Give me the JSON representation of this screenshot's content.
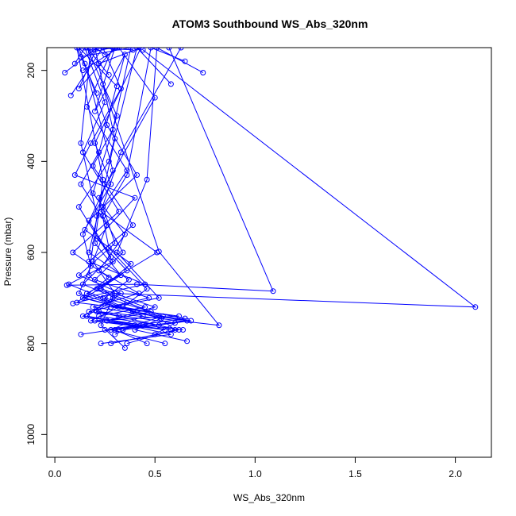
{
  "chart_data": {
    "type": "line",
    "title": "ATOM3 Southbound WS_Abs_320nm",
    "xlabel": "WS_Abs_320nm",
    "ylabel": "Pressure (mbar)",
    "xlim": [
      -0.04,
      2.18
    ],
    "ylim": [
      1050,
      150
    ],
    "y_reversed": true,
    "xticks": [
      0.0,
      0.5,
      1.0,
      1.5,
      2.0
    ],
    "xtick_labels": [
      "0.0",
      "0.5",
      "1.0",
      "1.5",
      "2.0"
    ],
    "yticks": [
      200,
      400,
      600,
      800,
      1000
    ],
    "ytick_labels": [
      "200",
      "400",
      "600",
      "800",
      "1000"
    ],
    "grid": false,
    "legend": "none",
    "color": "#0000ff",
    "marker": "open-circle",
    "series": [
      {
        "points": [
          [
            0.05,
            205
          ],
          [
            0.21,
            150
          ],
          [
            0.12,
            240
          ],
          [
            0.3,
            150
          ],
          [
            0.2,
            290
          ],
          [
            0.35,
            165
          ],
          [
            0.22,
            380
          ],
          [
            0.13,
            450
          ],
          [
            0.26,
            540
          ],
          [
            0.19,
            620
          ],
          [
            0.3,
            690
          ],
          [
            0.23,
            760
          ],
          [
            0.35,
            810
          ]
        ]
      },
      {
        "points": [
          [
            0.08,
            255
          ],
          [
            0.24,
            150
          ],
          [
            0.33,
            240
          ],
          [
            0.18,
            360
          ],
          [
            0.1,
            430
          ],
          [
            0.4,
            480
          ],
          [
            0.21,
            570
          ],
          [
            0.36,
            640
          ],
          [
            0.16,
            690
          ],
          [
            0.44,
            740
          ],
          [
            0.28,
            770
          ],
          [
            0.55,
            800
          ]
        ]
      },
      {
        "points": [
          [
            0.1,
            185
          ],
          [
            0.15,
            150
          ],
          [
            0.25,
            270
          ],
          [
            0.14,
            380
          ],
          [
            0.32,
            510
          ],
          [
            0.09,
            600
          ],
          [
            0.27,
            655
          ],
          [
            0.11,
            710
          ],
          [
            0.48,
            730
          ],
          [
            0.6,
            770
          ],
          [
            0.36,
            800
          ]
        ]
      },
      {
        "points": [
          [
            0.13,
            170
          ],
          [
            0.38,
            150
          ],
          [
            0.29,
            330
          ],
          [
            0.19,
            410
          ],
          [
            0.39,
            540
          ],
          [
            0.17,
            620
          ],
          [
            0.45,
            670
          ],
          [
            0.14,
            700
          ],
          [
            0.53,
            745
          ],
          [
            0.4,
            770
          ],
          [
            0.66,
            795
          ]
        ]
      },
      {
        "points": [
          [
            0.18,
            160
          ],
          [
            0.29,
            150
          ],
          [
            0.16,
            280
          ],
          [
            0.36,
            420
          ],
          [
            0.24,
            500
          ],
          [
            0.3,
            580
          ],
          [
            0.12,
            650
          ],
          [
            0.33,
            690
          ],
          [
            0.21,
            730
          ],
          [
            0.62,
            770
          ],
          [
            0.28,
            800
          ]
        ]
      },
      {
        "points": [
          [
            0.22,
            185
          ],
          [
            0.43,
            150
          ],
          [
            0.2,
            360
          ],
          [
            0.28,
            450
          ],
          [
            0.15,
            550
          ],
          [
            0.38,
            625
          ],
          [
            0.23,
            680
          ],
          [
            0.5,
            720
          ],
          [
            0.26,
            750
          ],
          [
            0.58,
            780
          ],
          [
            0.23,
            800
          ]
        ]
      },
      {
        "points": [
          [
            0.27,
            210
          ],
          [
            0.16,
            150
          ],
          [
            0.31,
            300
          ],
          [
            0.19,
            470
          ],
          [
            0.35,
            560
          ],
          [
            0.22,
            640
          ],
          [
            0.42,
            690
          ],
          [
            0.19,
            720
          ],
          [
            0.66,
            750
          ],
          [
            0.3,
            770
          ],
          [
            0.46,
            800
          ]
        ]
      },
      {
        "points": [
          [
            0.31,
            235
          ],
          [
            0.12,
            150
          ],
          [
            0.26,
            320
          ],
          [
            0.41,
            430
          ],
          [
            0.17,
            530
          ],
          [
            0.28,
            610
          ],
          [
            0.14,
            670
          ],
          [
            0.36,
            710
          ],
          [
            0.54,
            740
          ],
          [
            0.32,
            770
          ]
        ]
      },
      {
        "points": [
          [
            0.58,
            230
          ],
          [
            0.41,
            150
          ],
          [
            0.27,
            400
          ],
          [
            0.12,
            500
          ],
          [
            0.29,
            620
          ],
          [
            0.07,
            670
          ],
          [
            0.24,
            700
          ],
          [
            0.39,
            730
          ],
          [
            0.68,
            750
          ],
          [
            0.34,
            770
          ]
        ]
      },
      {
        "points": [
          [
            0.65,
            180
          ],
          [
            0.48,
            150
          ],
          [
            0.36,
            430
          ],
          [
            0.24,
            520
          ],
          [
            0.34,
            600
          ],
          [
            0.2,
            660
          ],
          [
            0.47,
            700
          ],
          [
            0.17,
            730
          ],
          [
            0.6,
            755
          ],
          [
            0.5,
            780
          ]
        ]
      },
      {
        "points": [
          [
            0.74,
            205
          ],
          [
            0.51,
            150
          ],
          [
            0.46,
            440
          ],
          [
            0.31,
            600
          ],
          [
            0.52,
            700
          ],
          [
            0.28,
            720
          ],
          [
            0.62,
            740
          ],
          [
            0.2,
            750
          ],
          [
            0.58,
            770
          ]
        ]
      },
      {
        "points": [
          [
            0.39,
            155
          ],
          [
            0.18,
            150
          ],
          [
            0.13,
            360
          ],
          [
            0.21,
            520
          ],
          [
            0.17,
            650
          ],
          [
            0.29,
            700
          ],
          [
            0.16,
            740
          ],
          [
            0.44,
            760
          ],
          [
            0.13,
            780
          ]
        ]
      },
      {
        "points": [
          [
            0.14,
            200
          ],
          [
            0.32,
            150
          ],
          [
            0.5,
            260
          ],
          [
            0.22,
            480
          ],
          [
            0.27,
            590
          ],
          [
            0.46,
            680
          ],
          [
            0.34,
            720
          ],
          [
            0.65,
            745
          ],
          [
            0.25,
            770
          ]
        ]
      },
      {
        "points": [
          [
            0.25,
            165
          ],
          [
            0.2,
            150
          ],
          [
            0.3,
            350
          ],
          [
            0.25,
            450
          ],
          [
            0.17,
            600
          ],
          [
            0.37,
            660
          ],
          [
            0.25,
            700
          ],
          [
            0.48,
            730
          ],
          [
            0.26,
            750
          ],
          [
            0.64,
            770
          ]
        ]
      },
      {
        "points": [
          [
            0.63,
            150
          ],
          [
            0.33,
            380
          ],
          [
            0.23,
            510
          ],
          [
            0.51,
            600
          ],
          [
            0.21,
            680
          ],
          [
            0.45,
            720
          ],
          [
            0.22,
            740
          ],
          [
            0.52,
            760
          ]
        ]
      },
      {
        "points": [
          [
            0.57,
            150
          ],
          [
            1.09,
            685
          ],
          [
            0.41,
            670
          ],
          [
            0.06,
            672
          ]
        ]
      },
      {
        "points": [
          [
            0.44,
            155
          ],
          [
            2.1,
            720
          ],
          [
            0.3,
            690
          ],
          [
            0.09,
            712
          ]
        ]
      },
      {
        "points": [
          [
            0.24,
            230
          ],
          [
            0.52,
            598
          ],
          [
            0.82,
            760
          ],
          [
            0.22,
            730
          ],
          [
            0.32,
            740
          ]
        ]
      },
      {
        "points": [
          [
            0.15,
            185
          ],
          [
            0.29,
            420
          ],
          [
            0.14,
            560
          ],
          [
            0.18,
            630
          ],
          [
            0.12,
            690
          ],
          [
            0.26,
            710
          ],
          [
            0.14,
            740
          ],
          [
            0.4,
            760
          ],
          [
            0.3,
            780
          ]
        ]
      },
      {
        "points": [
          [
            0.21,
            250
          ],
          [
            0.11,
            150
          ],
          [
            0.24,
            440
          ],
          [
            0.2,
            580
          ],
          [
            0.33,
            650
          ],
          [
            0.15,
            700
          ],
          [
            0.32,
            720
          ],
          [
            0.18,
            750
          ],
          [
            0.55,
            770
          ]
        ]
      }
    ]
  }
}
